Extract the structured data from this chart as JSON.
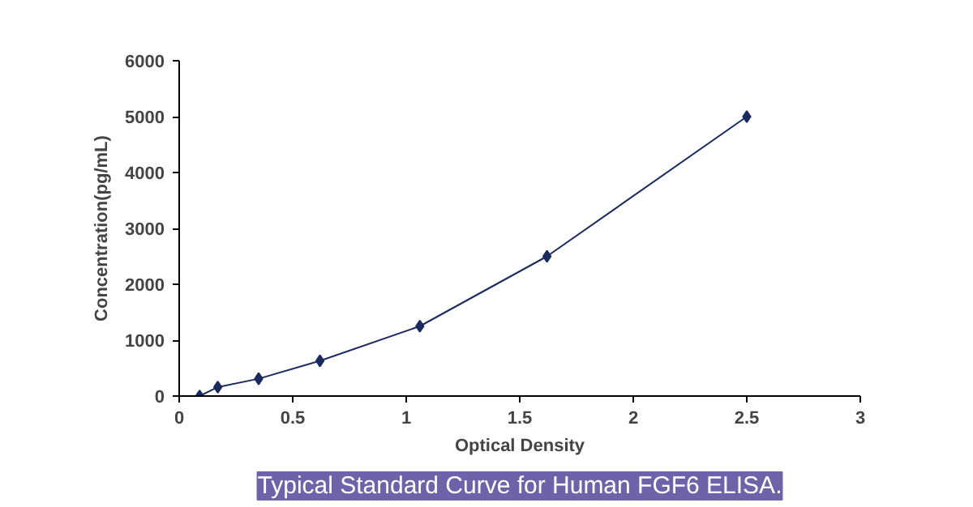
{
  "chart_data": {
    "type": "line",
    "xlabel": "Optical Density",
    "ylabel": "Concentration(pg/mL)",
    "x": [
      0.09,
      0.17,
      0.35,
      0.62,
      1.06,
      1.62,
      2.5
    ],
    "series": [
      {
        "color": "#1a2a5e",
        "values": [
          0,
          160,
          310,
          630,
          1250,
          2500,
          5000
        ]
      }
    ],
    "xlim": [
      0,
      3
    ],
    "xticks": [
      0,
      0.5,
      1,
      1.5,
      2,
      2.5,
      3
    ],
    "ylim": [
      0,
      6000
    ],
    "yticks": [
      0,
      1000,
      2000,
      3000,
      4000,
      5000,
      6000
    ],
    "marker": "diamond",
    "line_style": "solid",
    "grid": false,
    "annotations": [
      "Typical Standard Curve for Human FGF6 ELISA."
    ]
  }
}
